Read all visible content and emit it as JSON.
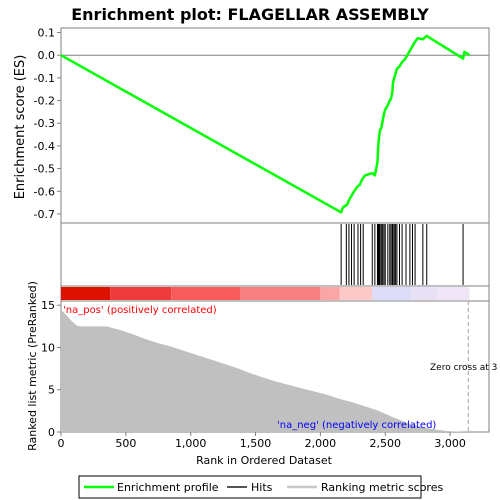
{
  "chart_data": {
    "type": "line",
    "title": "Enrichment plot: FLAGELLAR ASSEMBLY",
    "enrichment_panel": {
      "ylabel": "Enrichment score (ES)",
      "ylim": [
        -0.74,
        0.12
      ],
      "y_ticks": [
        0.1,
        0.0,
        -0.1,
        -0.2,
        -0.3,
        -0.4,
        -0.5,
        -0.6,
        -0.7
      ],
      "tick_labels": [
        "0.1",
        "0.0",
        "-0.1",
        "-0.2",
        "-0.3",
        "-0.4",
        "-0.5",
        "-0.6",
        "-0.7"
      ],
      "series_color": "#00ff00",
      "points": [
        [
          0,
          0.0
        ],
        [
          2160,
          -0.693
        ],
        [
          2175,
          -0.67
        ],
        [
          2205,
          -0.66
        ],
        [
          2220,
          -0.64
        ],
        [
          2240,
          -0.62
        ],
        [
          2260,
          -0.6
        ],
        [
          2285,
          -0.58
        ],
        [
          2305,
          -0.57
        ],
        [
          2320,
          -0.55
        ],
        [
          2345,
          -0.53
        ],
        [
          2400,
          -0.52
        ],
        [
          2420,
          -0.53
        ],
        [
          2440,
          -0.47
        ],
        [
          2445,
          -0.41
        ],
        [
          2450,
          -0.37
        ],
        [
          2455,
          -0.35
        ],
        [
          2460,
          -0.33
        ],
        [
          2470,
          -0.32
        ],
        [
          2480,
          -0.29
        ],
        [
          2490,
          -0.26
        ],
        [
          2500,
          -0.24
        ],
        [
          2520,
          -0.22
        ],
        [
          2535,
          -0.2
        ],
        [
          2545,
          -0.19
        ],
        [
          2555,
          -0.16
        ],
        [
          2560,
          -0.12
        ],
        [
          2570,
          -0.1
        ],
        [
          2580,
          -0.08
        ],
        [
          2590,
          -0.06
        ],
        [
          2610,
          -0.05
        ],
        [
          2630,
          -0.03
        ],
        [
          2650,
          -0.02
        ],
        [
          2670,
          0.0
        ],
        [
          2690,
          0.02
        ],
        [
          2710,
          0.04
        ],
        [
          2730,
          0.06
        ],
        [
          2750,
          0.075
        ],
        [
          2790,
          0.07
        ],
        [
          2820,
          0.085
        ],
        [
          3100,
          -0.015
        ],
        [
          3110,
          0.015
        ],
        [
          3150,
          0.0
        ]
      ]
    },
    "hits": [
      2160,
      2200,
      2220,
      2240,
      2260,
      2290,
      2310,
      2330,
      2400,
      2420,
      2440,
      2445,
      2450,
      2455,
      2460,
      2470,
      2480,
      2490,
      2500,
      2520,
      2535,
      2545,
      2555,
      2560,
      2570,
      2580,
      2590,
      2610,
      2630,
      2660,
      2690,
      2710,
      2730,
      2790,
      2820,
      3100
    ],
    "ranking_panel": {
      "ylabel": "Ranked list metric (PreRanked)",
      "xlabel": "Rank in Ordered Dataset",
      "ylim": [
        0,
        15.5
      ],
      "y_ticks": [
        0,
        5,
        10,
        15
      ],
      "tick_labels": [
        "0",
        "5",
        "10",
        "15"
      ],
      "x_ticks": [
        0,
        500,
        1000,
        1500,
        2000,
        2500,
        3000
      ],
      "x_tick_labels": [
        "0",
        "500",
        "1,000",
        "1,500",
        "2,000",
        "2,500",
        "3,000"
      ],
      "xlim": [
        0,
        3300
      ],
      "fill_color": "#c0c0c0",
      "metric_profile": [
        [
          0,
          14.5
        ],
        [
          30,
          14.0
        ],
        [
          60,
          13.5
        ],
        [
          90,
          13.0
        ],
        [
          120,
          12.6
        ],
        [
          150,
          12.5
        ],
        [
          350,
          12.5
        ],
        [
          450,
          12.1
        ],
        [
          550,
          11.6
        ],
        [
          650,
          11.0
        ],
        [
          750,
          10.5
        ],
        [
          850,
          10.1
        ],
        [
          950,
          9.6
        ],
        [
          1050,
          9.1
        ],
        [
          1150,
          8.6
        ],
        [
          1250,
          8.1
        ],
        [
          1350,
          7.6
        ],
        [
          1450,
          7.0
        ],
        [
          1550,
          6.5
        ],
        [
          1650,
          6.0
        ],
        [
          1750,
          5.6
        ],
        [
          1850,
          5.2
        ],
        [
          1950,
          4.8
        ],
        [
          2050,
          4.4
        ],
        [
          2150,
          3.9
        ],
        [
          2250,
          3.5
        ],
        [
          2350,
          3.0
        ],
        [
          2450,
          2.5
        ],
        [
          2550,
          1.8
        ],
        [
          2650,
          1.2
        ],
        [
          2700,
          0.9
        ],
        [
          2800,
          0.5
        ],
        [
          2900,
          0.25
        ],
        [
          3000,
          0.1
        ],
        [
          3100,
          0.03
        ],
        [
          3150,
          0.0
        ]
      ],
      "zero_cross_rank": 3140,
      "zero_cross_label": "Zero cross at 3",
      "pos_label": "'na_pos' (positively correlated)",
      "neg_label": "'na_neg' (negatively correlated)",
      "pos_label_color": "#ff0000",
      "neg_label_color": "#0000ff"
    },
    "color_bar": {
      "segments": [
        {
          "end": 380,
          "color": "#dd1100"
        },
        {
          "end": 850,
          "color": "#ee3b3b"
        },
        {
          "end": 1380,
          "color": "#f85c5c"
        },
        {
          "end": 2000,
          "color": "#f98080"
        },
        {
          "end": 2150,
          "color": "#fba6a6"
        },
        {
          "end": 2400,
          "color": "#fcc8c8"
        },
        {
          "end": 2700,
          "color": "#dcdcf8"
        },
        {
          "end": 2900,
          "color": "#e8e0f4"
        },
        {
          "end": 3150,
          "color": "#eee6f6"
        }
      ]
    },
    "legend": {
      "position": "bottom",
      "items": [
        {
          "label": "Enrichment profile",
          "color": "#00ff00",
          "style": "line"
        },
        {
          "label": "Hits",
          "color": "#555555",
          "style": "line"
        },
        {
          "label": "Ranking metric scores",
          "color": "#c8c8c8",
          "style": "line"
        }
      ]
    }
  }
}
